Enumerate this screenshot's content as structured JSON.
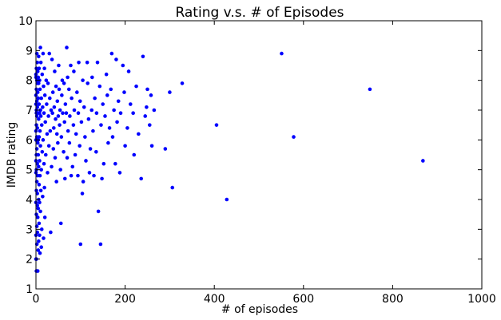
{
  "chart_data": {
    "type": "scatter",
    "title": "Rating v.s. # of Episodes",
    "xlabel": "# of episodes",
    "ylabel": "IMDB rating",
    "xlim": [
      0,
      1000
    ],
    "ylim": [
      1,
      10
    ],
    "x_ticks": [
      0,
      200,
      400,
      600,
      800,
      1000
    ],
    "y_ticks": [
      1,
      2,
      3,
      4,
      5,
      6,
      7,
      8,
      9,
      10
    ],
    "grid": false,
    "marker_color": "#0000ff",
    "points": [
      [
        868,
        5.3
      ],
      [
        749,
        7.7
      ],
      [
        578,
        6.1
      ],
      [
        551,
        8.9
      ],
      [
        428,
        4.0
      ],
      [
        405,
        6.5
      ],
      [
        306,
        4.4
      ],
      [
        328,
        7.9
      ],
      [
        290,
        5.7
      ],
      [
        300,
        7.6
      ],
      [
        265,
        7.0
      ],
      [
        260,
        5.8
      ],
      [
        258,
        7.5
      ],
      [
        255,
        6.5
      ],
      [
        250,
        7.7
      ],
      [
        248,
        7.1
      ],
      [
        245,
        6.8
      ],
      [
        240,
        8.8
      ],
      [
        236,
        4.7
      ],
      [
        230,
        6.2
      ],
      [
        225,
        7.8
      ],
      [
        220,
        5.5
      ],
      [
        218,
        6.9
      ],
      [
        212,
        7.2
      ],
      [
        208,
        8.3
      ],
      [
        205,
        6.4
      ],
      [
        200,
        5.8
      ],
      [
        198,
        7.6
      ],
      [
        195,
        8.5
      ],
      [
        190,
        6.9
      ],
      [
        188,
        4.9
      ],
      [
        185,
        7.3
      ],
      [
        182,
        6.6
      ],
      [
        180,
        8.7
      ],
      [
        178,
        5.2
      ],
      [
        175,
        7.0
      ],
      [
        172,
        6.1
      ],
      [
        170,
        8.9
      ],
      [
        168,
        7.7
      ],
      [
        165,
        6.4
      ],
      [
        162,
        5.9
      ],
      [
        160,
        7.5
      ],
      [
        158,
        8.2
      ],
      [
        155,
        6.8
      ],
      [
        152,
        5.2
      ],
      [
        150,
        7.2
      ],
      [
        148,
        4.7
      ],
      [
        146,
        6.5
      ],
      [
        145,
        2.5
      ],
      [
        143,
        7.8
      ],
      [
        140,
        3.6
      ],
      [
        138,
        8.6
      ],
      [
        136,
        6.9
      ],
      [
        135,
        5.6
      ],
      [
        132,
        7.4
      ],
      [
        130,
        4.8
      ],
      [
        128,
        6.3
      ],
      [
        126,
        8.1
      ],
      [
        125,
        7.0
      ],
      [
        122,
        5.7
      ],
      [
        120,
        4.9
      ],
      [
        118,
        6.7
      ],
      [
        116,
        7.9
      ],
      [
        115,
        8.6
      ],
      [
        112,
        5.3
      ],
      [
        110,
        6.1
      ],
      [
        108,
        7.1
      ],
      [
        106,
        4.6
      ],
      [
        105,
        8.0
      ],
      [
        104,
        4.2
      ],
      [
        102,
        6.6
      ],
      [
        100,
        2.5
      ],
      [
        99,
        7.3
      ],
      [
        98,
        5.8
      ],
      [
        96,
        8.6
      ],
      [
        95,
        6.9
      ],
      [
        94,
        4.8
      ],
      [
        92,
        7.6
      ],
      [
        90,
        6.2
      ],
      [
        88,
        5.5
      ],
      [
        86,
        7.0
      ],
      [
        85,
        8.3
      ],
      [
        84,
        6.5
      ],
      [
        82,
        5.1
      ],
      [
        80,
        7.4
      ],
      [
        79,
        4.8
      ],
      [
        78,
        8.5
      ],
      [
        76,
        6.8
      ],
      [
        75,
        5.9
      ],
      [
        74,
        7.7
      ],
      [
        72,
        6.3
      ],
      [
        71,
        8.1
      ],
      [
        70,
        5.4
      ],
      [
        69,
        9.1
      ],
      [
        68,
        6.9
      ],
      [
        66,
        7.2
      ],
      [
        65,
        4.7
      ],
      [
        64,
        6.6
      ],
      [
        63,
        7.9
      ],
      [
        62,
        5.6
      ],
      [
        60,
        6.9
      ],
      [
        59,
        8.0
      ],
      [
        58,
        7.5
      ],
      [
        57,
        6.1
      ],
      [
        56,
        3.2
      ],
      [
        55,
        5.0
      ],
      [
        54,
        7.0
      ],
      [
        53,
        6.5
      ],
      [
        52,
        7.7
      ],
      [
        51,
        8.5
      ],
      [
        50,
        6.8
      ],
      [
        49,
        5.9
      ],
      [
        48,
        7.3
      ],
      [
        47,
        6.2
      ],
      [
        46,
        4.6
      ],
      [
        45,
        7.8
      ],
      [
        44,
        6.7
      ],
      [
        43,
        5.4
      ],
      [
        42,
        8.3
      ],
      [
        41,
        7.1
      ],
      [
        40,
        6.4
      ],
      [
        39,
        5.7
      ],
      [
        38,
        7.6
      ],
      [
        37,
        6.9
      ],
      [
        36,
        8.7
      ],
      [
        35,
        5.1
      ],
      [
        34,
        7.0
      ],
      [
        33,
        2.9
      ],
      [
        32,
        6.3
      ],
      [
        31,
        7.4
      ],
      [
        30,
        8.9
      ],
      [
        29,
        5.8
      ],
      [
        28,
        6.8
      ],
      [
        27,
        7.9
      ],
      [
        26,
        4.9
      ],
      [
        25,
        6.2
      ],
      [
        24,
        7.2
      ],
      [
        23,
        8.0
      ],
      [
        22,
        5.5
      ],
      [
        21,
        6.6
      ],
      [
        20,
        7.5
      ],
      [
        20,
        3.4
      ],
      [
        19,
        8.4
      ],
      [
        19,
        4.4
      ],
      [
        18,
        6.9
      ],
      [
        18,
        5.2
      ],
      [
        17,
        7.8
      ],
      [
        17,
        2.7
      ],
      [
        16,
        6.0
      ],
      [
        16,
        8.9
      ],
      [
        15,
        7.1
      ],
      [
        15,
        4.1
      ],
      [
        14,
        5.6
      ],
      [
        14,
        8.2
      ],
      [
        13,
        6.5
      ],
      [
        13,
        3.0
      ],
      [
        12,
        7.4
      ],
      [
        12,
        5.0
      ],
      [
        12,
        2.4
      ],
      [
        11,
        6.8
      ],
      [
        11,
        8.6
      ],
      [
        11,
        4.3
      ],
      [
        10,
        7.0
      ],
      [
        10,
        5.8
      ],
      [
        10,
        3.6
      ],
      [
        10,
        9.1
      ],
      [
        9,
        6.3
      ],
      [
        9,
        7.7
      ],
      [
        9,
        4.8
      ],
      [
        9,
        2.2
      ],
      [
        8,
        6.9
      ],
      [
        8,
        8.0
      ],
      [
        8,
        5.3
      ],
      [
        8,
        3.9
      ],
      [
        8,
        2.8
      ],
      [
        7,
        7.2
      ],
      [
        7,
        6.1
      ],
      [
        7,
        4.5
      ],
      [
        7,
        8.4
      ],
      [
        7,
        3.2
      ],
      [
        6,
        6.7
      ],
      [
        6,
        7.9
      ],
      [
        6,
        5.1
      ],
      [
        6,
        4.0
      ],
      [
        6,
        2.6
      ],
      [
        6,
        8.8
      ],
      [
        5,
        7.4
      ],
      [
        5,
        6.0
      ],
      [
        5,
        5.5
      ],
      [
        5,
        3.7
      ],
      [
        5,
        8.1
      ],
      [
        5,
        2.3
      ],
      [
        4,
        6.9
      ],
      [
        4,
        7.6
      ],
      [
        4,
        4.8
      ],
      [
        4,
        5.9
      ],
      [
        4,
        3.4
      ],
      [
        4,
        8.3
      ],
      [
        4,
        1.6
      ],
      [
        3,
        7.1
      ],
      [
        3,
        6.4
      ],
      [
        3,
        5.2
      ],
      [
        3,
        4.2
      ],
      [
        3,
        7.9
      ],
      [
        3,
        2.9
      ],
      [
        3,
        8.6
      ],
      [
        3,
        3.8
      ],
      [
        2,
        6.8
      ],
      [
        2,
        7.3
      ],
      [
        2,
        5.7
      ],
      [
        2,
        4.6
      ],
      [
        2,
        8.0
      ],
      [
        2,
        3.1
      ],
      [
        2,
        6.1
      ],
      [
        2,
        2.5
      ],
      [
        2,
        8.9
      ],
      [
        1,
        7.0
      ],
      [
        1,
        6.5
      ],
      [
        1,
        5.0
      ],
      [
        1,
        4.3
      ],
      [
        1,
        7.7
      ],
      [
        1,
        3.5
      ],
      [
        1,
        8.4
      ],
      [
        1,
        2.0
      ],
      [
        1,
        6.9
      ],
      [
        1,
        5.5
      ],
      [
        1,
        1.6
      ],
      [
        0,
        7.2
      ],
      [
        0,
        6.3
      ],
      [
        0,
        8.1
      ],
      [
        0,
        4.9
      ],
      [
        0,
        2.8
      ],
      [
        0,
        8.2
      ],
      [
        0,
        7.5
      ],
      [
        0,
        6.0
      ],
      [
        0,
        3.9
      ],
      [
        0,
        5.3
      ],
      [
        0,
        2.0
      ]
    ]
  }
}
